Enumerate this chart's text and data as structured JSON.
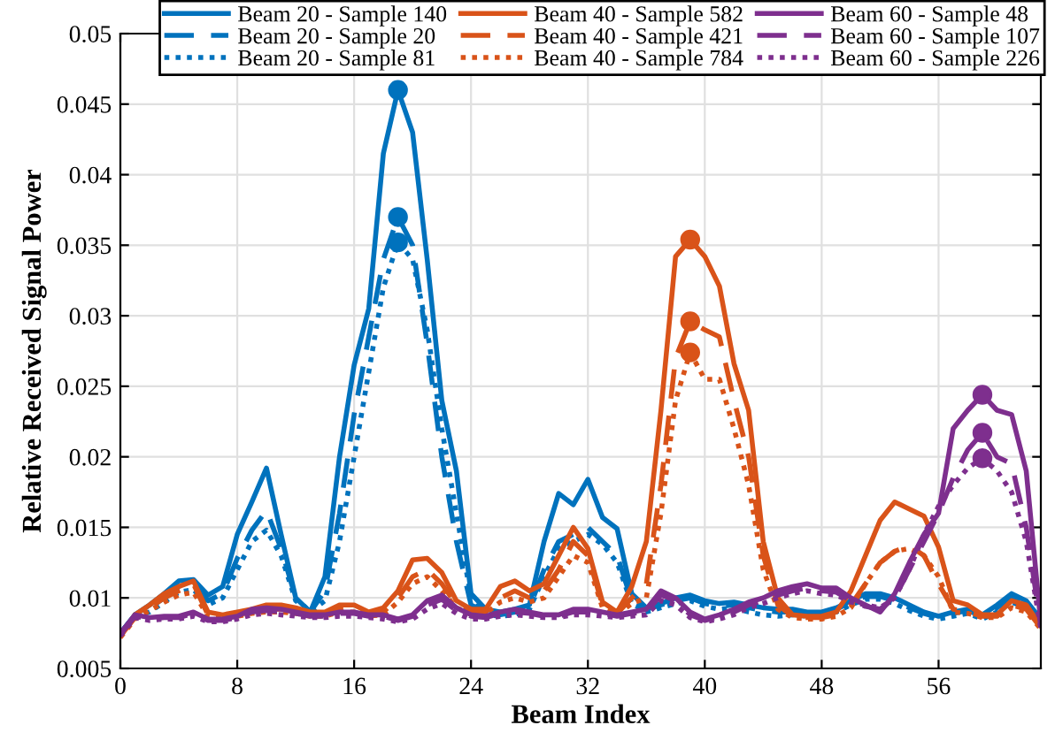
{
  "chart_data": {
    "type": "line",
    "xlabel": "Beam Index",
    "ylabel": "Relative Received Signal Power",
    "x": [
      0,
      1,
      2,
      3,
      4,
      5,
      6,
      7,
      8,
      9,
      10,
      11,
      12,
      13,
      14,
      15,
      16,
      17,
      18,
      19,
      20,
      21,
      22,
      23,
      24,
      25,
      26,
      27,
      28,
      29,
      30,
      31,
      32,
      33,
      34,
      35,
      36,
      37,
      38,
      39,
      40,
      41,
      42,
      43,
      44,
      45,
      46,
      47,
      48,
      49,
      50,
      51,
      52,
      53,
      54,
      55,
      56,
      57,
      58,
      59,
      60,
      61,
      62,
      63
    ],
    "xlim": [
      0,
      63
    ],
    "xticks": [
      0,
      8,
      16,
      24,
      32,
      40,
      48,
      56
    ],
    "ylim": [
      0.005,
      0.05
    ],
    "yticks": [
      0.005,
      0.01,
      0.015,
      0.02,
      0.025,
      0.03,
      0.035,
      0.04,
      0.045,
      0.05
    ],
    "grid": true,
    "legend": "top",
    "marker": "none",
    "series": [
      {
        "name": "Beam 20 - Sample 140",
        "color": "#0072bd",
        "line_style": "solid",
        "values": [
          0.0075,
          0.0088,
          0.0095,
          0.0103,
          0.0112,
          0.0113,
          0.0102,
          0.0108,
          0.0145,
          0.0168,
          0.0192,
          0.0145,
          0.01,
          0.009,
          0.0115,
          0.02,
          0.0265,
          0.0305,
          0.0415,
          0.046,
          0.043,
          0.034,
          0.024,
          0.019,
          0.0103,
          0.0092,
          0.009,
          0.0092,
          0.0095,
          0.014,
          0.0174,
          0.0166,
          0.0184,
          0.0157,
          0.0149,
          0.0103,
          0.0093,
          0.0096,
          0.01,
          0.0102,
          0.0098,
          0.0096,
          0.0097,
          0.0095,
          0.0093,
          0.0092,
          0.0092,
          0.009,
          0.009,
          0.0093,
          0.0098,
          0.0103,
          0.0103,
          0.01,
          0.0095,
          0.009,
          0.0087,
          0.009,
          0.0092,
          0.0088,
          0.0095,
          0.0103,
          0.0098,
          0.0085
        ]
      },
      {
        "name": "Beam 20 - Sample 20",
        "color": "#0072bd",
        "line_style": "dashed",
        "values": [
          0.0075,
          0.0088,
          0.0093,
          0.01,
          0.0108,
          0.011,
          0.0098,
          0.0103,
          0.0128,
          0.0148,
          0.0162,
          0.0135,
          0.01,
          0.009,
          0.0105,
          0.016,
          0.023,
          0.0285,
          0.034,
          0.037,
          0.035,
          0.028,
          0.02,
          0.014,
          0.0095,
          0.009,
          0.0088,
          0.009,
          0.0093,
          0.012,
          0.014,
          0.0145,
          0.015,
          0.014,
          0.013,
          0.0098,
          0.0092,
          0.0095,
          0.0098,
          0.01,
          0.0096,
          0.0094,
          0.0095,
          0.0093,
          0.0091,
          0.009,
          0.009,
          0.0089,
          0.0089,
          0.0092,
          0.0097,
          0.0101,
          0.0101,
          0.0098,
          0.0093,
          0.0089,
          0.0086,
          0.0089,
          0.0091,
          0.0087,
          0.0093,
          0.01,
          0.0095,
          0.0083
        ]
      },
      {
        "name": "Beam 20 - Sample 81",
        "color": "#0072bd",
        "line_style": "dotted",
        "values": [
          0.0074,
          0.0087,
          0.009,
          0.0097,
          0.0104,
          0.0106,
          0.0095,
          0.01,
          0.012,
          0.014,
          0.0148,
          0.013,
          0.0098,
          0.009,
          0.0098,
          0.014,
          0.02,
          0.026,
          0.032,
          0.0352,
          0.034,
          0.029,
          0.022,
          0.016,
          0.01,
          0.0088,
          0.0087,
          0.0088,
          0.0092,
          0.0115,
          0.0135,
          0.014,
          0.0145,
          0.0138,
          0.0125,
          0.0096,
          0.009,
          0.0093,
          0.0096,
          0.0098,
          0.0094,
          0.0092,
          0.0093,
          0.009,
          0.0088,
          0.0087,
          0.0088,
          0.0087,
          0.0087,
          0.009,
          0.0095,
          0.0099,
          0.0099,
          0.0096,
          0.0091,
          0.0087,
          0.0085,
          0.0087,
          0.0089,
          0.0085,
          0.009,
          0.0097,
          0.0093,
          0.0081
        ]
      },
      {
        "name": "Beam 40 - Sample 582",
        "color": "#d95319",
        "line_style": "solid",
        "values": [
          0.0073,
          0.0088,
          0.0095,
          0.0103,
          0.0108,
          0.0112,
          0.009,
          0.0088,
          0.009,
          0.0092,
          0.0095,
          0.0095,
          0.0093,
          0.009,
          0.009,
          0.0095,
          0.0095,
          0.009,
          0.0093,
          0.0105,
          0.0127,
          0.0128,
          0.0118,
          0.0098,
          0.0092,
          0.0092,
          0.0108,
          0.0112,
          0.0105,
          0.011,
          0.013,
          0.015,
          0.0135,
          0.0097,
          0.009,
          0.0108,
          0.014,
          0.0233,
          0.0342,
          0.0354,
          0.0342,
          0.0321,
          0.0266,
          0.0233,
          0.014,
          0.01,
          0.0088,
          0.0087,
          0.0087,
          0.009,
          0.0105,
          0.013,
          0.0155,
          0.0168,
          0.0163,
          0.0158,
          0.0136,
          0.0098,
          0.0095,
          0.0088,
          0.0088,
          0.0098,
          0.0095,
          0.008
        ]
      },
      {
        "name": "Beam 40 - Sample 421",
        "color": "#d95319",
        "line_style": "dashed",
        "values": [
          0.0073,
          0.0086,
          0.0093,
          0.01,
          0.0105,
          0.011,
          0.0088,
          0.0087,
          0.0088,
          0.009,
          0.0092,
          0.0092,
          0.009,
          0.0088,
          0.0088,
          0.0092,
          0.0092,
          0.0088,
          0.009,
          0.01,
          0.0115,
          0.012,
          0.011,
          0.0095,
          0.009,
          0.009,
          0.01,
          0.0105,
          0.01,
          0.0105,
          0.012,
          0.014,
          0.013,
          0.0095,
          0.0089,
          0.01,
          0.011,
          0.018,
          0.027,
          0.0296,
          0.029,
          0.0285,
          0.024,
          0.02,
          0.013,
          0.0095,
          0.0087,
          0.0086,
          0.0086,
          0.0088,
          0.0095,
          0.011,
          0.0125,
          0.0133,
          0.0137,
          0.013,
          0.011,
          0.0092,
          0.009,
          0.0087,
          0.0087,
          0.0095,
          0.0092,
          0.0079
        ]
      },
      {
        "name": "Beam 40 - Sample 784",
        "color": "#d95319",
        "line_style": "dotted",
        "values": [
          0.0072,
          0.0085,
          0.0091,
          0.0097,
          0.0102,
          0.0104,
          0.0087,
          0.0086,
          0.0087,
          0.0089,
          0.009,
          0.009,
          0.0089,
          0.0087,
          0.0087,
          0.009,
          0.009,
          0.0087,
          0.0088,
          0.0097,
          0.011,
          0.0115,
          0.0105,
          0.0093,
          0.0089,
          0.0089,
          0.0097,
          0.01,
          0.0097,
          0.01,
          0.0115,
          0.013,
          0.0125,
          0.0093,
          0.0088,
          0.0096,
          0.01,
          0.016,
          0.024,
          0.0274,
          0.0255,
          0.0255,
          0.022,
          0.018,
          0.012,
          0.0092,
          0.0086,
          0.0085,
          0.0085,
          0.0087,
          0.0093,
          0.011,
          0.0125,
          0.0133,
          0.0135,
          0.013,
          0.0115,
          0.009,
          0.0089,
          0.0086,
          0.0086,
          0.0093,
          0.009,
          0.0078
        ]
      },
      {
        "name": "Beam 60 - Sample 48",
        "color": "#7e2f8e",
        "line_style": "solid",
        "values": [
          0.0075,
          0.0088,
          0.0086,
          0.0087,
          0.0087,
          0.009,
          0.0085,
          0.0085,
          0.0087,
          0.0092,
          0.0093,
          0.0092,
          0.009,
          0.0088,
          0.0088,
          0.009,
          0.009,
          0.0088,
          0.0088,
          0.0085,
          0.0088,
          0.0098,
          0.0102,
          0.0093,
          0.0088,
          0.0087,
          0.009,
          0.0092,
          0.009,
          0.0088,
          0.0088,
          0.0092,
          0.0092,
          0.009,
          0.0088,
          0.009,
          0.0092,
          0.0105,
          0.01,
          0.009,
          0.0085,
          0.0088,
          0.0092,
          0.0097,
          0.01,
          0.0105,
          0.0108,
          0.011,
          0.0107,
          0.0107,
          0.01,
          0.0095,
          0.009,
          0.0103,
          0.0125,
          0.0145,
          0.016,
          0.022,
          0.0233,
          0.0244,
          0.0233,
          0.023,
          0.019,
          0.0082
        ]
      },
      {
        "name": "Beam 60 - Sample 107",
        "color": "#7e2f8e",
        "line_style": "dashed",
        "values": [
          0.0074,
          0.0087,
          0.0085,
          0.0086,
          0.0086,
          0.0089,
          0.0084,
          0.0084,
          0.0086,
          0.009,
          0.0091,
          0.009,
          0.0089,
          0.0087,
          0.0087,
          0.0089,
          0.0089,
          0.0087,
          0.0087,
          0.0084,
          0.0087,
          0.0095,
          0.0099,
          0.0091,
          0.0087,
          0.0086,
          0.0089,
          0.009,
          0.0089,
          0.0087,
          0.0087,
          0.009,
          0.009,
          0.0089,
          0.0087,
          0.0089,
          0.009,
          0.0102,
          0.0098,
          0.0088,
          0.0084,
          0.0087,
          0.009,
          0.0095,
          0.0098,
          0.0102,
          0.0105,
          0.0107,
          0.0105,
          0.0104,
          0.0098,
          0.0094,
          0.0092,
          0.01,
          0.012,
          0.014,
          0.016,
          0.0185,
          0.0205,
          0.0217,
          0.02,
          0.0195,
          0.015,
          0.008
        ]
      },
      {
        "name": "Beam 60 - Sample 226",
        "color": "#7e2f8e",
        "line_style": "dotted",
        "values": [
          0.0073,
          0.0086,
          0.0084,
          0.0085,
          0.0085,
          0.0087,
          0.0083,
          0.0083,
          0.0085,
          0.0088,
          0.0089,
          0.0088,
          0.0087,
          0.0086,
          0.0086,
          0.0087,
          0.0087,
          0.0086,
          0.0085,
          0.0083,
          0.0085,
          0.0092,
          0.0096,
          0.0089,
          0.0085,
          0.0085,
          0.0087,
          0.0088,
          0.0087,
          0.0086,
          0.0086,
          0.0088,
          0.0088,
          0.0087,
          0.0086,
          0.0087,
          0.0088,
          0.0098,
          0.0095,
          0.0086,
          0.0083,
          0.0085,
          0.0088,
          0.0093,
          0.0096,
          0.01,
          0.0103,
          0.0105,
          0.0103,
          0.0102,
          0.0097,
          0.0095,
          0.0093,
          0.01,
          0.012,
          0.0145,
          0.0165,
          0.018,
          0.0192,
          0.0199,
          0.019,
          0.0175,
          0.014,
          0.0078
        ]
      },
      {
        "type": "scatter",
        "marker": "circle",
        "x": [
          19,
          19,
          19,
          39,
          39,
          39,
          59,
          59,
          59
        ],
        "values": [
          0.046,
          0.037,
          0.0352,
          0.0354,
          0.0296,
          0.0274,
          0.0244,
          0.0217,
          0.0199
        ],
        "colors": [
          "#0072bd",
          "#0072bd",
          "#0072bd",
          "#d95319",
          "#d95319",
          "#d95319",
          "#7e2f8e",
          "#7e2f8e",
          "#7e2f8e"
        ]
      }
    ]
  }
}
